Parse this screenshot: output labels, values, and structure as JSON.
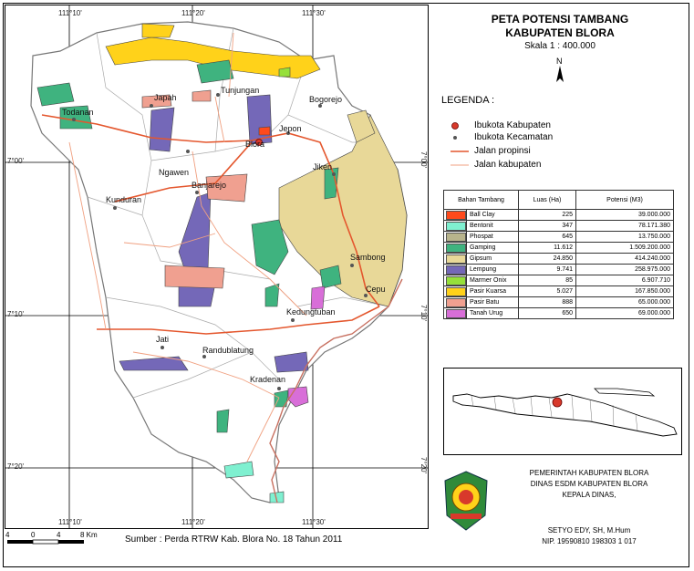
{
  "title_line1": "PETA POTENSI TAMBANG",
  "title_line2": "KABUPATEN BLORA",
  "scale_text": "Skala 1 : 400.000",
  "north_label": "N",
  "legend": {
    "heading": "LEGENDA :",
    "items": [
      {
        "label": "Ibukota Kabupaten",
        "symbol": "capital",
        "color": "#d8392b"
      },
      {
        "label": "Ibukota Kecamatan",
        "symbol": "district",
        "color": "#555555"
      },
      {
        "label": "Jalan propinsi",
        "symbol": "line",
        "color": "#e4572e"
      },
      {
        "label": "Jalan kabupaten",
        "symbol": "line",
        "color": "#f0a080"
      }
    ]
  },
  "table": {
    "headers": [
      "Bahan Tambang",
      "Luas (Ha)",
      "Potensi (M3)"
    ],
    "rows": [
      {
        "name": "Ball Clay",
        "area": "225",
        "potential": "39.000.000",
        "color": "#ff4a1c"
      },
      {
        "name": "Bentonit",
        "area": "347",
        "potential": "78.171.380",
        "color": "#7ff0d0"
      },
      {
        "name": "Phospat",
        "area": "645",
        "potential": "13.750.000",
        "color": "#b8b48c"
      },
      {
        "name": "Gamping",
        "area": "11.612",
        "potential": "1.509.200.000",
        "color": "#3fb37f"
      },
      {
        "name": "Gipsum",
        "area": "24.850",
        "potential": "414.240.000",
        "color": "#e8d898"
      },
      {
        "name": "Lempung",
        "area": "9.741",
        "potential": "258.975.000",
        "color": "#7468b8"
      },
      {
        "name": "Marmer Onix",
        "area": "85",
        "potential": "6.907.710",
        "color": "#96e03a"
      },
      {
        "name": "Pasir Kuarsa",
        "area": "5.027",
        "potential": "167.850.000",
        "color": "#ffd21a"
      },
      {
        "name": "Pasir Batu",
        "area": "888",
        "potential": "65.000.000",
        "color": "#f0a090"
      },
      {
        "name": "Tanah Urug",
        "area": "650",
        "potential": "69.000.000",
        "color": "#d86ed8"
      }
    ]
  },
  "government": {
    "line1": "PEMERINTAH KABUPATEN BLORA",
    "line2": "DINAS ESDM KABUPATEN BLORA",
    "line3": "KEPALA DINAS,",
    "name": "SETYO EDY, SH, M.Hum",
    "nip": "NIP. 19590810 198303 1 017"
  },
  "source": "Sumber : Perda RTRW Kab. Blora No. 18  Tahun 2011",
  "scalebar": {
    "ticks": [
      "4",
      "0",
      "4",
      "8 Km"
    ]
  },
  "grid": {
    "lon_labels": [
      "111°10'",
      "111°20'",
      "111°30'"
    ],
    "lat_labels": [
      "7°00'",
      "7°10'",
      "7°20'"
    ]
  },
  "places": [
    "Todanan",
    "Japah",
    "Tunjungan",
    "Bogorejo",
    "Jepon",
    "Blora",
    "Ngawen",
    "Jiken",
    "Kunduran",
    "Banjarejo",
    "Sambong",
    "Cepu",
    "Kedungtuban",
    "Jati",
    "Randublatung",
    "Kradenan"
  ],
  "colors": {
    "boundary": "#888888",
    "district_line": "#aaaaaa",
    "province_road": "#e4572e",
    "regency_road": "#f0a080",
    "river": "#c87060"
  }
}
